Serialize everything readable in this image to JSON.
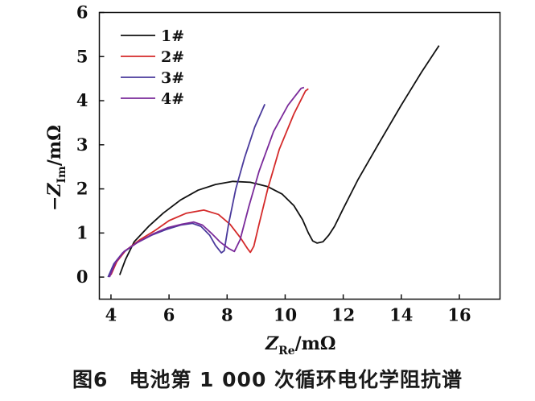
{
  "chart_data": {
    "type": "line",
    "xlabel": {
      "symbol": "Z",
      "sub": "Re",
      "unit": "/mΩ"
    },
    "ylabel": {
      "prefix": "−",
      "symbol": "Z",
      "sub": "Im",
      "unit": "/mΩ"
    },
    "xlim": [
      3.6,
      17.4
    ],
    "ylim": [
      -0.5,
      6
    ],
    "xticks": [
      4,
      6,
      8,
      10,
      12,
      14,
      16
    ],
    "yticks": [
      0,
      1,
      2,
      3,
      4,
      5,
      6
    ],
    "legend_position": "top-left",
    "series": [
      {
        "name": "1#",
        "color": "#111111",
        "points": [
          [
            4.3,
            0.05
          ],
          [
            4.5,
            0.4
          ],
          [
            4.8,
            0.8
          ],
          [
            5.3,
            1.15
          ],
          [
            5.8,
            1.45
          ],
          [
            6.4,
            1.75
          ],
          [
            7.0,
            1.97
          ],
          [
            7.6,
            2.1
          ],
          [
            8.2,
            2.17
          ],
          [
            8.8,
            2.15
          ],
          [
            9.4,
            2.05
          ],
          [
            9.9,
            1.88
          ],
          [
            10.3,
            1.62
          ],
          [
            10.6,
            1.3
          ],
          [
            10.8,
            1.0
          ],
          [
            10.95,
            0.82
          ],
          [
            11.1,
            0.77
          ],
          [
            11.3,
            0.8
          ],
          [
            11.5,
            0.95
          ],
          [
            11.7,
            1.15
          ],
          [
            12.0,
            1.55
          ],
          [
            12.5,
            2.2
          ],
          [
            13.2,
            3.0
          ],
          [
            14.0,
            3.9
          ],
          [
            14.7,
            4.65
          ],
          [
            15.3,
            5.25
          ]
        ]
      },
      {
        "name": "2#",
        "color": "#d42a2a",
        "points": [
          [
            4.0,
            0.05
          ],
          [
            4.2,
            0.35
          ],
          [
            4.5,
            0.6
          ],
          [
            5.0,
            0.85
          ],
          [
            5.5,
            1.05
          ],
          [
            6.0,
            1.28
          ],
          [
            6.6,
            1.45
          ],
          [
            7.2,
            1.52
          ],
          [
            7.7,
            1.42
          ],
          [
            8.1,
            1.2
          ],
          [
            8.45,
            0.9
          ],
          [
            8.7,
            0.65
          ],
          [
            8.8,
            0.56
          ],
          [
            8.92,
            0.7
          ],
          [
            9.1,
            1.2
          ],
          [
            9.4,
            2.0
          ],
          [
            9.8,
            2.9
          ],
          [
            10.3,
            3.7
          ],
          [
            10.7,
            4.22
          ],
          [
            10.8,
            4.27
          ]
        ]
      },
      {
        "name": "3#",
        "color": "#4a3a9c",
        "points": [
          [
            3.9,
            0.0
          ],
          [
            4.1,
            0.3
          ],
          [
            4.4,
            0.55
          ],
          [
            4.9,
            0.78
          ],
          [
            5.4,
            0.95
          ],
          [
            5.9,
            1.08
          ],
          [
            6.4,
            1.18
          ],
          [
            6.8,
            1.22
          ],
          [
            7.1,
            1.15
          ],
          [
            7.4,
            0.95
          ],
          [
            7.6,
            0.72
          ],
          [
            7.8,
            0.55
          ],
          [
            7.9,
            0.6
          ],
          [
            8.05,
            1.2
          ],
          [
            8.3,
            2.0
          ],
          [
            8.6,
            2.7
          ],
          [
            8.95,
            3.4
          ],
          [
            9.3,
            3.92
          ]
        ]
      },
      {
        "name": "4#",
        "color": "#7a2a9a",
        "points": [
          [
            3.95,
            0.0
          ],
          [
            4.15,
            0.32
          ],
          [
            4.45,
            0.58
          ],
          [
            4.95,
            0.8
          ],
          [
            5.45,
            0.98
          ],
          [
            5.95,
            1.12
          ],
          [
            6.45,
            1.2
          ],
          [
            6.85,
            1.25
          ],
          [
            7.15,
            1.18
          ],
          [
            7.45,
            1.0
          ],
          [
            7.75,
            0.8
          ],
          [
            8.05,
            0.65
          ],
          [
            8.25,
            0.58
          ],
          [
            8.45,
            0.85
          ],
          [
            8.75,
            1.6
          ],
          [
            9.1,
            2.4
          ],
          [
            9.6,
            3.3
          ],
          [
            10.1,
            3.9
          ],
          [
            10.55,
            4.28
          ],
          [
            10.65,
            4.3
          ]
        ]
      }
    ]
  },
  "caption": "图6　电池第 1 000 次循环电化学阻抗谱"
}
